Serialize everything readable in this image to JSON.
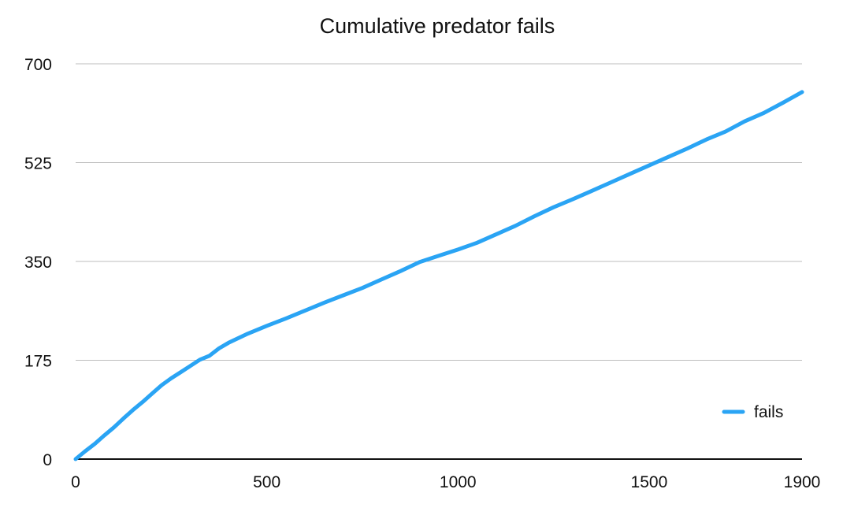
{
  "chart_data": {
    "type": "line",
    "title": "Cumulative predator fails",
    "xlabel": "",
    "ylabel": "",
    "xlim": [
      0,
      1900
    ],
    "ylim": [
      0,
      700
    ],
    "xticks": [
      0,
      500,
      1000,
      1500,
      1900
    ],
    "yticks": [
      0,
      175,
      350,
      525,
      700
    ],
    "xtick_labels": [
      "0",
      "500",
      "1000",
      "1500",
      "1900"
    ],
    "ytick_labels": [
      "0",
      "175",
      "350",
      "525",
      "700"
    ],
    "grid": "horizontal",
    "legend_position": "lower-right",
    "series": [
      {
        "name": "fails",
        "color": "#2aa4f4",
        "x": [
          0,
          25,
          50,
          75,
          100,
          125,
          150,
          175,
          200,
          225,
          250,
          275,
          300,
          325,
          350,
          375,
          400,
          450,
          500,
          550,
          600,
          650,
          700,
          750,
          800,
          850,
          900,
          950,
          1000,
          1050,
          1100,
          1150,
          1200,
          1250,
          1300,
          1350,
          1400,
          1450,
          1500,
          1550,
          1600,
          1650,
          1700,
          1750,
          1800,
          1850,
          1900
        ],
        "y": [
          0,
          14,
          27,
          42,
          56,
          72,
          87,
          101,
          116,
          131,
          143,
          154,
          165,
          176,
          183,
          196,
          206,
          222,
          236,
          249,
          263,
          277,
          290,
          303,
          318,
          333,
          349,
          360,
          371,
          383,
          398,
          413,
          430,
          446,
          460,
          475,
          490,
          505,
          520,
          535,
          550,
          566,
          580,
          598,
          613,
          631,
          650
        ]
      }
    ]
  }
}
